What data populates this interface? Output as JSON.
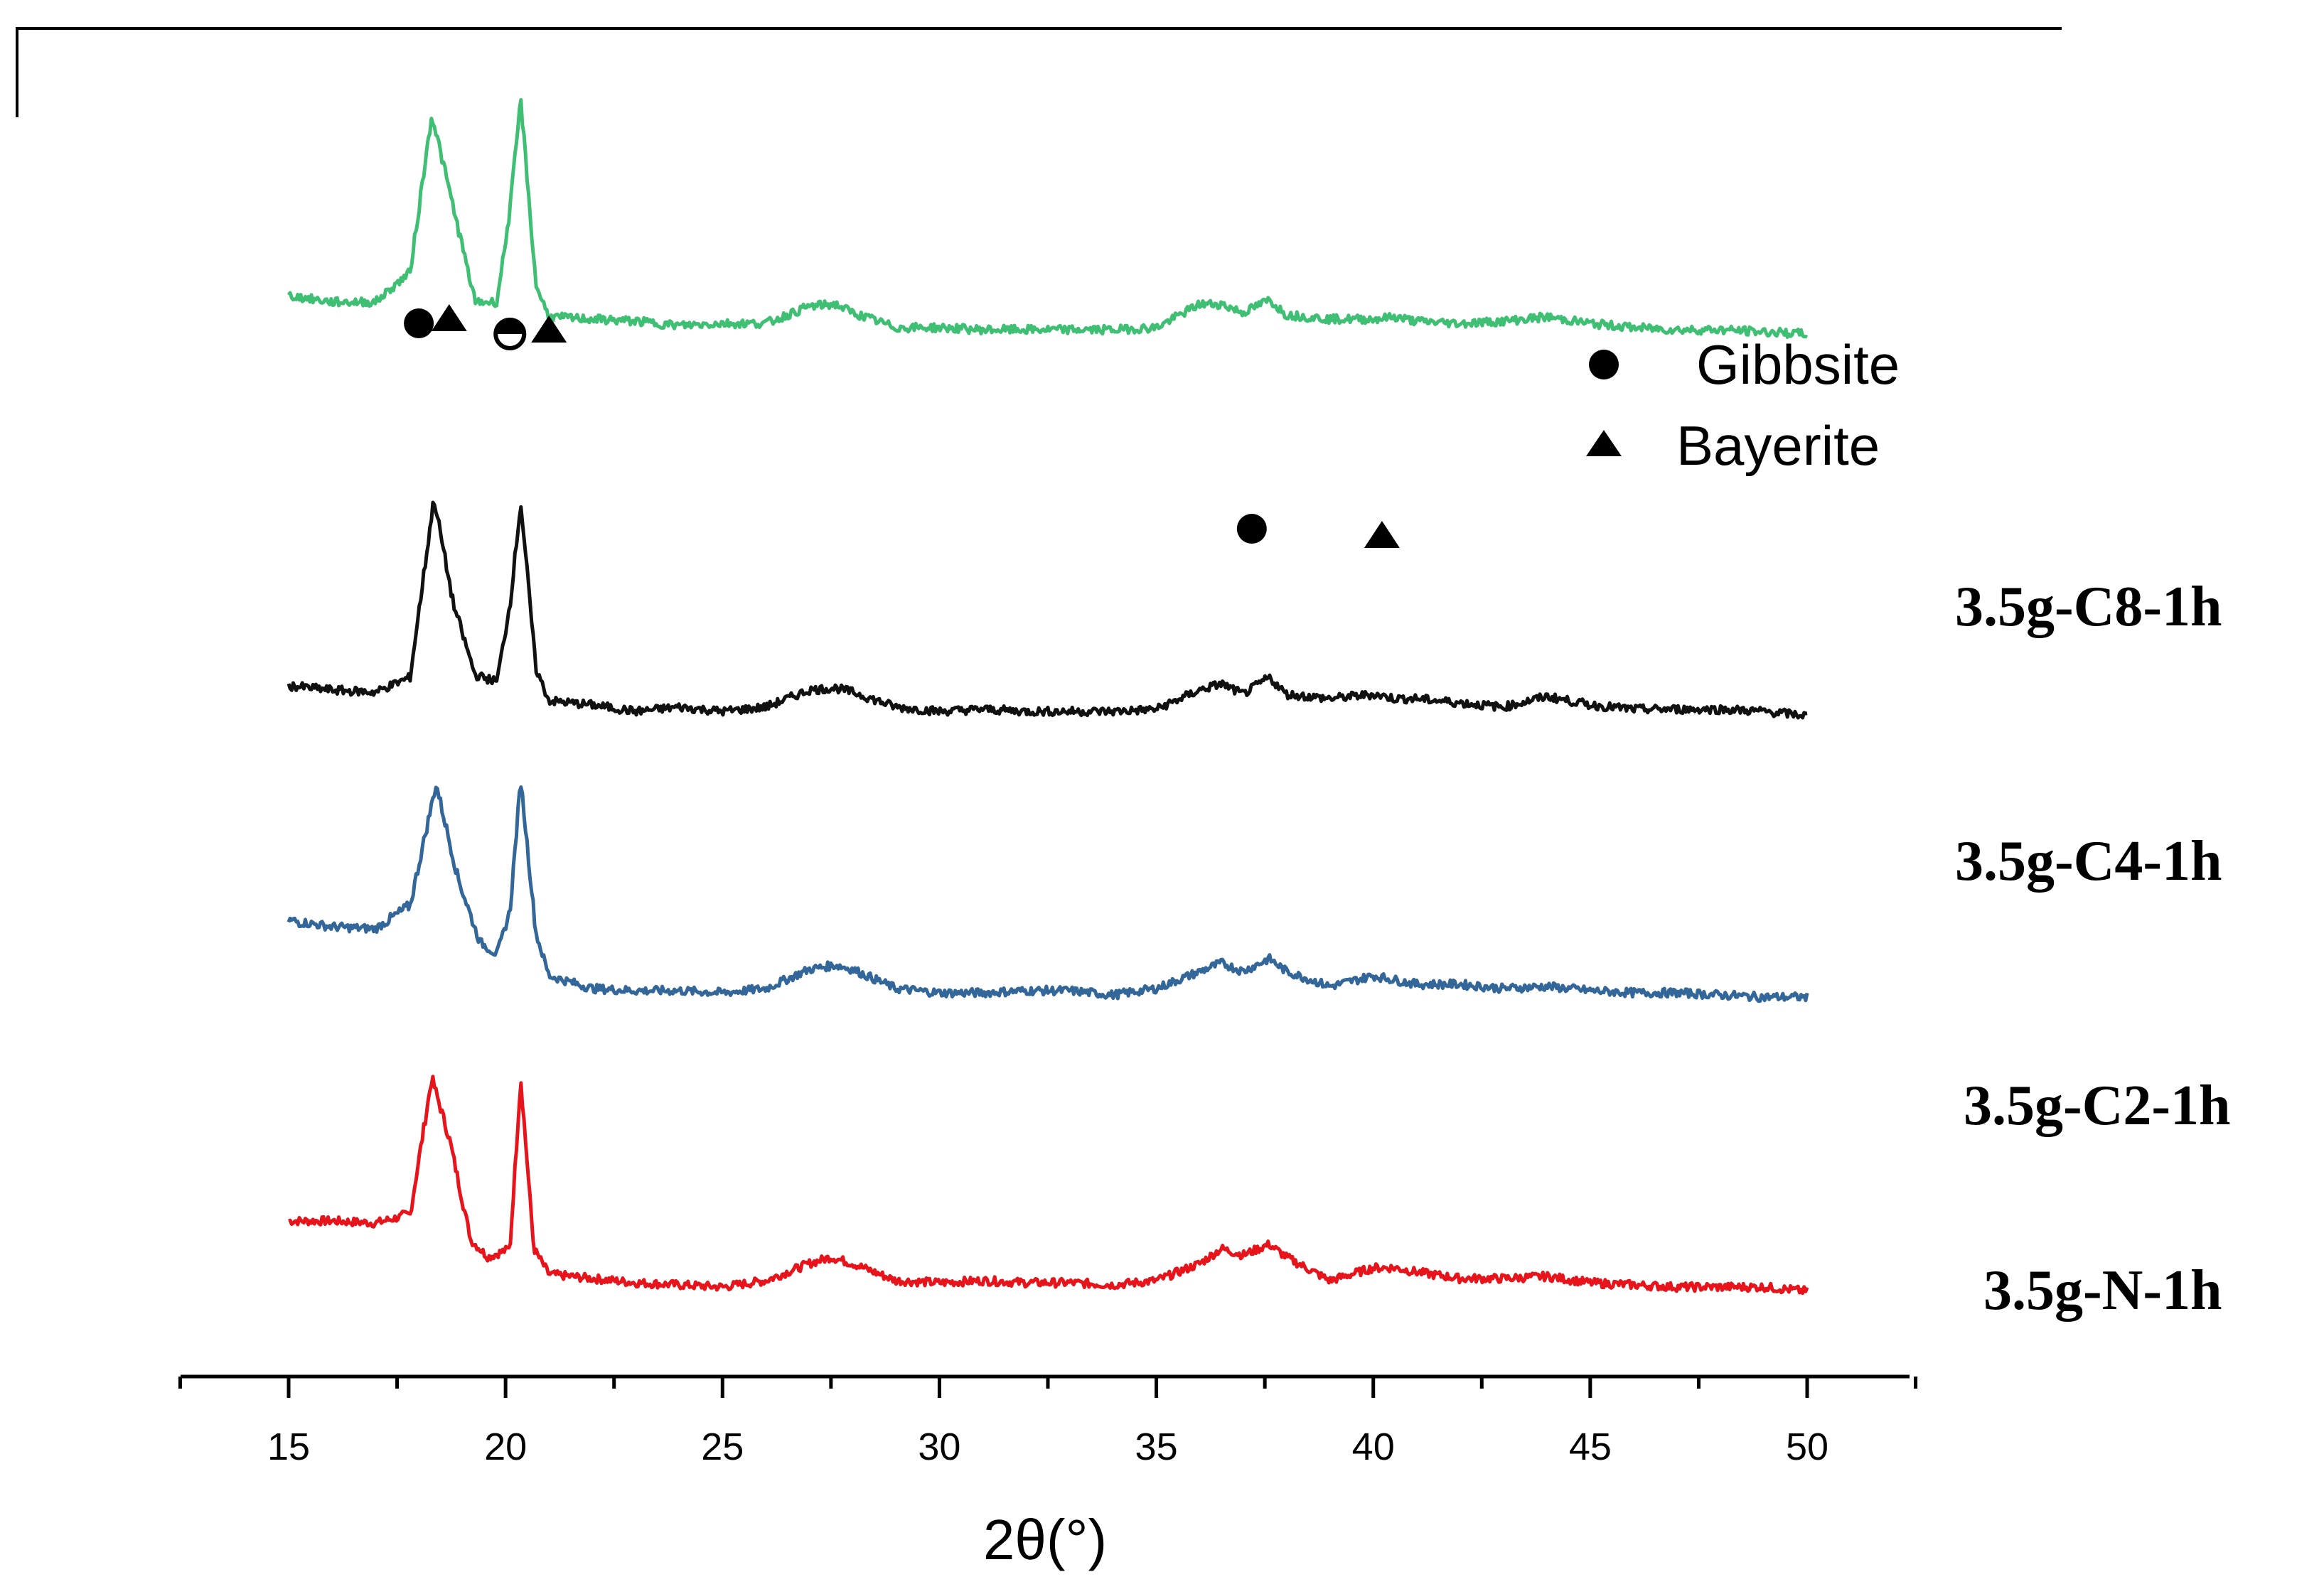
{
  "chart_data": {
    "type": "line",
    "title": "",
    "xlabel": "2θ(°)",
    "ylabel": "",
    "xlim": [
      12.5,
      52.5
    ],
    "x_ticks": [
      "15",
      "20",
      "25",
      "30",
      "35",
      "40",
      "45",
      "50"
    ],
    "y_axis_shown": false,
    "grid": false,
    "legend": {
      "placement": "top-right",
      "entries": [
        {
          "marker": "circle",
          "label": "Gibbsite"
        },
        {
          "marker": "triangle",
          "label": "Bayerite"
        }
      ]
    },
    "series": [
      {
        "name": "3.5g-N-1h",
        "color": "#e8141b",
        "baseline": 0.0,
        "points": [
          [
            15,
            0.33
          ],
          [
            16,
            0.33
          ],
          [
            17,
            0.32
          ],
          [
            17.8,
            0.36
          ],
          [
            18.3,
            1.0
          ],
          [
            18.7,
            0.72
          ],
          [
            19.2,
            0.24
          ],
          [
            19.6,
            0.16
          ],
          [
            20.1,
            0.2
          ],
          [
            20.35,
            1.0
          ],
          [
            20.65,
            0.2
          ],
          [
            21,
            0.08
          ],
          [
            22,
            0.06
          ],
          [
            23,
            0.04
          ],
          [
            24,
            0.03
          ],
          [
            25,
            0.02
          ],
          [
            26,
            0.05
          ],
          [
            27,
            0.13
          ],
          [
            27.5,
            0.16
          ],
          [
            28,
            0.13
          ],
          [
            29,
            0.05
          ],
          [
            30,
            0.04
          ],
          [
            31,
            0.05
          ],
          [
            32,
            0.04
          ],
          [
            33,
            0.04
          ],
          [
            34,
            0.03
          ],
          [
            35,
            0.05
          ],
          [
            36,
            0.13
          ],
          [
            36.5,
            0.2
          ],
          [
            37,
            0.17
          ],
          [
            37.6,
            0.22
          ],
          [
            38,
            0.16
          ],
          [
            39,
            0.05
          ],
          [
            40,
            0.11
          ],
          [
            40.5,
            0.11
          ],
          [
            41,
            0.09
          ],
          [
            42,
            0.06
          ],
          [
            43,
            0.06
          ],
          [
            44,
            0.07
          ],
          [
            45,
            0.04
          ],
          [
            46,
            0.03
          ],
          [
            47,
            0.02
          ],
          [
            48,
            0.02
          ],
          [
            49,
            0.02
          ],
          [
            50,
            0.0
          ]
        ]
      },
      {
        "name": "3.5g-C2-1h",
        "color": "#336699",
        "baseline": 1.38,
        "points": [
          [
            15,
            0.36
          ],
          [
            16,
            0.33
          ],
          [
            17,
            0.32
          ],
          [
            17.8,
            0.43
          ],
          [
            18.4,
            1.0
          ],
          [
            18.9,
            0.56
          ],
          [
            19.4,
            0.26
          ],
          [
            19.8,
            0.2
          ],
          [
            20.1,
            0.4
          ],
          [
            20.35,
            1.02
          ],
          [
            20.7,
            0.3
          ],
          [
            21,
            0.1
          ],
          [
            22,
            0.04
          ],
          [
            23,
            0.03
          ],
          [
            24,
            0.03
          ],
          [
            25,
            0.02
          ],
          [
            26,
            0.04
          ],
          [
            27,
            0.13
          ],
          [
            27.6,
            0.15
          ],
          [
            28,
            0.13
          ],
          [
            29,
            0.04
          ],
          [
            30,
            0.02
          ],
          [
            31,
            0.02
          ],
          [
            32,
            0.03
          ],
          [
            33,
            0.03
          ],
          [
            34,
            0.01
          ],
          [
            35,
            0.04
          ],
          [
            36,
            0.12
          ],
          [
            36.5,
            0.16
          ],
          [
            37,
            0.12
          ],
          [
            37.6,
            0.18
          ],
          [
            38,
            0.12
          ],
          [
            39,
            0.05
          ],
          [
            40,
            0.1
          ],
          [
            40.5,
            0.08
          ],
          [
            41,
            0.06
          ],
          [
            42,
            0.06
          ],
          [
            43,
            0.04
          ],
          [
            44,
            0.05
          ],
          [
            45,
            0.03
          ],
          [
            46,
            0.02
          ],
          [
            47,
            0.02
          ],
          [
            48,
            0.01
          ],
          [
            49,
            0.0
          ],
          [
            50,
            0.0
          ]
        ]
      },
      {
        "name": "3.5g-C4-1h",
        "color": "#111111",
        "baseline": 2.72,
        "points": [
          [
            15,
            0.12
          ],
          [
            16,
            0.1
          ],
          [
            17,
            0.09
          ],
          [
            17.8,
            0.16
          ],
          [
            18.35,
            1.0
          ],
          [
            18.8,
            0.5
          ],
          [
            19.3,
            0.17
          ],
          [
            19.8,
            0.14
          ],
          [
            20.1,
            0.5
          ],
          [
            20.35,
            0.98
          ],
          [
            20.7,
            0.2
          ],
          [
            21,
            0.05
          ],
          [
            22,
            0.03
          ],
          [
            23,
            0.0
          ],
          [
            24,
            0.02
          ],
          [
            25,
            0.0
          ],
          [
            26,
            0.02
          ],
          [
            27,
            0.1
          ],
          [
            27.6,
            0.11
          ],
          [
            28,
            0.09
          ],
          [
            29,
            0.02
          ],
          [
            30,
            0.0
          ],
          [
            31,
            0.01
          ],
          [
            32,
            0.0
          ],
          [
            33,
            0.0
          ],
          [
            34,
            0.0
          ],
          [
            35,
            0.01
          ],
          [
            36,
            0.1
          ],
          [
            36.5,
            0.13
          ],
          [
            37,
            0.08
          ],
          [
            37.6,
            0.16
          ],
          [
            38,
            0.08
          ],
          [
            39,
            0.06
          ],
          [
            40,
            0.08
          ],
          [
            40.5,
            0.06
          ],
          [
            41,
            0.06
          ],
          [
            42,
            0.04
          ],
          [
            43,
            0.02
          ],
          [
            44,
            0.07
          ],
          [
            45,
            0.03
          ],
          [
            46,
            0.01
          ],
          [
            47,
            0.01
          ],
          [
            48,
            0.01
          ],
          [
            49,
            0.0
          ],
          [
            50,
            -0.02
          ]
        ]
      },
      {
        "name": "3.5g-C8-1h",
        "color": "#3fbf73",
        "baseline": 4.52,
        "points": [
          [
            15,
            0.15
          ],
          [
            16,
            0.12
          ],
          [
            17,
            0.12
          ],
          [
            17.8,
            0.26
          ],
          [
            18.3,
            1.0
          ],
          [
            18.8,
            0.56
          ],
          [
            19.3,
            0.12
          ],
          [
            19.8,
            0.12
          ],
          [
            20.1,
            0.55
          ],
          [
            20.35,
            1.07
          ],
          [
            20.7,
            0.2
          ],
          [
            21,
            0.05
          ],
          [
            22,
            0.04
          ],
          [
            23,
            0.03
          ],
          [
            24,
            0.01
          ],
          [
            25,
            0.02
          ],
          [
            26,
            0.02
          ],
          [
            27,
            0.1
          ],
          [
            27.6,
            0.11
          ],
          [
            28,
            0.07
          ],
          [
            29,
            0.0
          ],
          [
            30,
            0.0
          ],
          [
            31,
            -0.01
          ],
          [
            32,
            -0.01
          ],
          [
            33,
            -0.01
          ],
          [
            34,
            -0.01
          ],
          [
            35,
            0.0
          ],
          [
            36,
            0.11
          ],
          [
            36.5,
            0.11
          ],
          [
            37,
            0.07
          ],
          [
            37.6,
            0.13
          ],
          [
            38,
            0.06
          ],
          [
            39,
            0.04
          ],
          [
            40,
            0.04
          ],
          [
            40.5,
            0.05
          ],
          [
            41,
            0.03
          ],
          [
            42,
            0.02
          ],
          [
            43,
            0.03
          ],
          [
            44,
            0.05
          ],
          [
            45,
            0.02
          ],
          [
            46,
            0.0
          ],
          [
            47,
            -0.01
          ],
          [
            48,
            -0.01
          ],
          [
            49,
            -0.02
          ],
          [
            50,
            -0.03
          ]
        ]
      }
    ],
    "annotations": [
      {
        "marker": "circle",
        "x": 18.0,
        "series": "3.5g-C8-1h"
      },
      {
        "marker": "triangle",
        "x": 18.7,
        "series": "3.5g-C8-1h"
      },
      {
        "marker": "half-circle",
        "x": 20.1,
        "series": "3.5g-C8-1h"
      },
      {
        "marker": "triangle",
        "x": 21.0,
        "series": "3.5g-C8-1h"
      },
      {
        "marker": "circle",
        "x": 37.2,
        "series": "3.5g-C8-1h"
      },
      {
        "marker": "triangle",
        "x": 40.2,
        "series": "3.5g-C8-1h"
      }
    ]
  }
}
